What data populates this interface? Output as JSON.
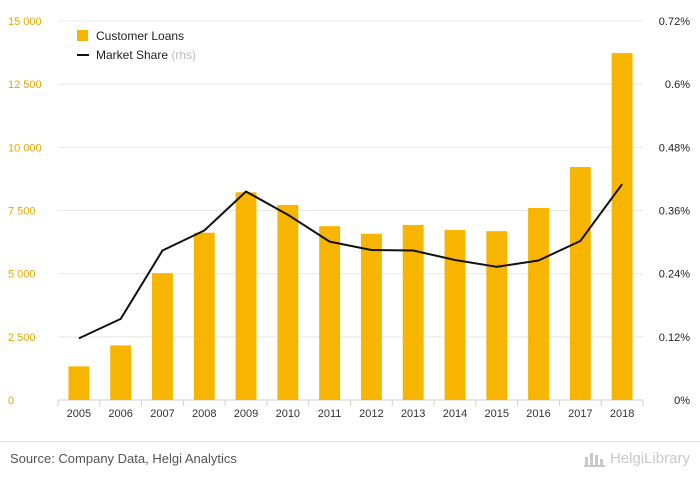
{
  "chart_data": {
    "type": "bar",
    "categories": [
      "2005",
      "2006",
      "2007",
      "2008",
      "2009",
      "2010",
      "2011",
      "2012",
      "2013",
      "2014",
      "2015",
      "2016",
      "2017",
      "2018"
    ],
    "series": [
      {
        "name": "Customer Loans",
        "type": "bar",
        "axis": "left",
        "values": [
          1330,
          2160,
          5020,
          6620,
          8220,
          7720,
          6880,
          6580,
          6930,
          6730,
          6680,
          7600,
          9220,
          13730
        ]
      },
      {
        "name": "Market Share",
        "name_suffix": "(rhs)",
        "type": "line",
        "axis": "right",
        "values": [
          0.117,
          0.154,
          0.284,
          0.322,
          0.396,
          0.352,
          0.301,
          0.285,
          0.284,
          0.266,
          0.253,
          0.265,
          0.302,
          0.41
        ]
      }
    ],
    "y_left": {
      "ylim": [
        0,
        15000
      ],
      "ticks": [
        0,
        2500,
        5000,
        7500,
        10000,
        12500,
        15000
      ],
      "tick_labels": [
        "0",
        "2 500",
        "5 000",
        "7 500",
        "10 000",
        "12 500",
        "15 000"
      ]
    },
    "y_right": {
      "ylim": [
        0,
        0.72
      ],
      "ticks": [
        0,
        0.12,
        0.24,
        0.36,
        0.48,
        0.6,
        0.72
      ],
      "tick_labels": [
        "0%",
        "0.12%",
        "0.24%",
        "0.36%",
        "0.48%",
        "0.6%",
        "0.72%"
      ]
    },
    "legend_position": "top-left",
    "grid": true
  },
  "colors": {
    "bar": "#f7b500",
    "line": "#111111",
    "left_axis_text": "#e6a700",
    "right_axis_text": "#222222",
    "grid": "#e8e8e8"
  },
  "footer": {
    "source": "Source: Company Data, Helgi Analytics",
    "brand": "HelgiLibrary",
    "brand_icon": "helgi-logo-icon"
  }
}
